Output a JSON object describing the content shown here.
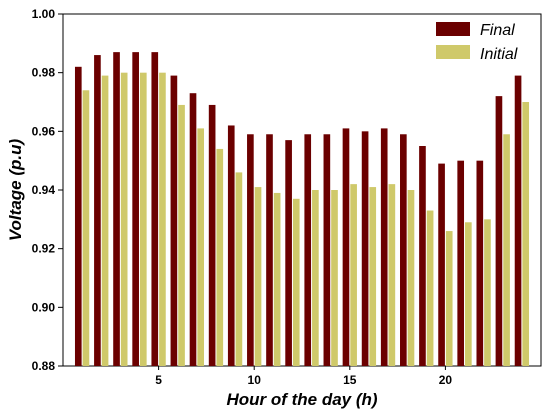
{
  "chart_data": {
    "type": "bar",
    "title": "",
    "xlabel": "Hour of the day (h)",
    "ylabel": "Voltage (p.u)",
    "x": [
      1,
      2,
      3,
      4,
      5,
      6,
      7,
      8,
      9,
      10,
      11,
      12,
      13,
      14,
      15,
      16,
      17,
      18,
      19,
      20,
      21,
      22,
      23,
      24
    ],
    "xticks": [
      5,
      10,
      15,
      20
    ],
    "xlim": [
      0,
      25
    ],
    "ylim": [
      0.88,
      1.0
    ],
    "yticks": [
      "0.88",
      "0.90",
      "0.92",
      "0.94",
      "0.96",
      "0.98",
      "1.00"
    ],
    "legend_position": "top-right",
    "grid": false,
    "series": [
      {
        "name": "Final",
        "color": "#6b0000",
        "values": [
          0.982,
          0.986,
          0.987,
          0.987,
          0.987,
          0.979,
          0.973,
          0.969,
          0.962,
          0.959,
          0.959,
          0.957,
          0.959,
          0.959,
          0.961,
          0.96,
          0.961,
          0.959,
          0.955,
          0.949,
          0.95,
          0.95,
          0.972,
          0.979
        ]
      },
      {
        "name": "Initial",
        "color": "#cfc96a",
        "values": [
          0.974,
          0.979,
          0.98,
          0.98,
          0.98,
          0.969,
          0.961,
          0.954,
          0.946,
          0.941,
          0.939,
          0.937,
          0.94,
          0.94,
          0.942,
          0.941,
          0.942,
          0.94,
          0.933,
          0.926,
          0.929,
          0.93,
          0.959,
          0.97
        ]
      }
    ]
  }
}
